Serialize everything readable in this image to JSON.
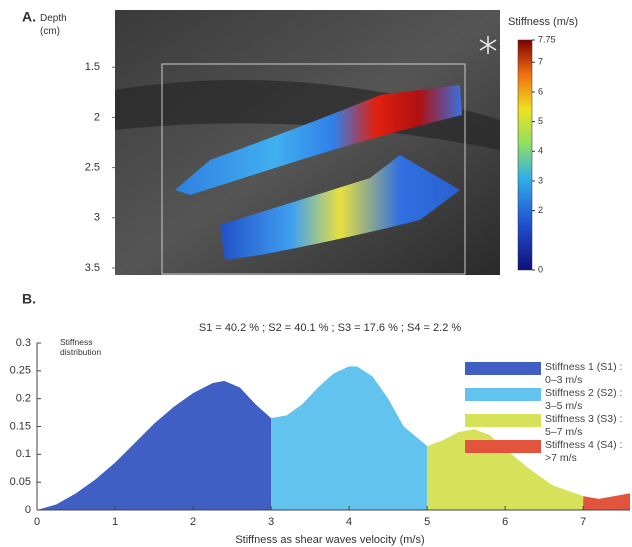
{
  "panel_a": {
    "label": "A.",
    "axis_label": "Depth (cm)",
    "ylim": [
      0.93,
      3.57
    ],
    "yticks": [
      1.5,
      2,
      2.5,
      3,
      3.5
    ],
    "colorbar": {
      "title": "Stiffness (m/s)",
      "ylim": [
        0,
        7.75
      ],
      "ticks": [
        7.75,
        7,
        6,
        5,
        4,
        3,
        2,
        0
      ]
    }
  },
  "panel_b": {
    "label": "B.",
    "chart_data": {
      "type": "area",
      "subtitle": "S1 = 40.2 % ; S2 = 40.1 % ;  S3 = 17.6 % ; S4 = 2.2 %",
      "y_label": "Stiffness distribution",
      "x_label": "Stiffness as shear waves velocity (m/s)",
      "xlim": [
        0,
        7.6
      ],
      "xticks": [
        0,
        1,
        2,
        3,
        4,
        5,
        6,
        7
      ],
      "ylim": [
        0,
        0.3
      ],
      "yticks": [
        0,
        0.05,
        0.1,
        0.15,
        0.2,
        0.25,
        0.3
      ],
      "series": [
        {
          "name": "Stiffness 1 (S1) : 0–3 m/s",
          "color": "#3f5fc4",
          "x": [
            0,
            0.25,
            0.5,
            0.75,
            1,
            1.25,
            1.5,
            1.75,
            2,
            2.25,
            2.4,
            2.6,
            2.8,
            3
          ],
          "values": [
            0,
            0.01,
            0.03,
            0.055,
            0.085,
            0.12,
            0.155,
            0.185,
            0.21,
            0.228,
            0.232,
            0.22,
            0.19,
            0.165
          ]
        },
        {
          "name": "Stiffness 2 (S2) : 3–5 m/s",
          "color": "#62c3ee",
          "x": [
            3,
            3.2,
            3.4,
            3.6,
            3.8,
            4,
            4.1,
            4.3,
            4.5,
            4.7,
            5
          ],
          "values": [
            0.165,
            0.17,
            0.19,
            0.22,
            0.245,
            0.258,
            0.258,
            0.24,
            0.2,
            0.15,
            0.115
          ]
        },
        {
          "name": "Stiffness 3 (S3) : 5–7 m/s",
          "color": "#d6e35a",
          "x": [
            5,
            5.2,
            5.4,
            5.6,
            5.8,
            6,
            6.3,
            6.6,
            7
          ],
          "values": [
            0.115,
            0.125,
            0.14,
            0.145,
            0.135,
            0.11,
            0.075,
            0.045,
            0.025
          ]
        },
        {
          "name": "Stiffness 4 (S4) : >7 m/s",
          "color": "#e2553c",
          "x": [
            7,
            7.2,
            7.4,
            7.6
          ],
          "values": [
            0.025,
            0.02,
            0.025,
            0.03
          ]
        }
      ]
    }
  }
}
